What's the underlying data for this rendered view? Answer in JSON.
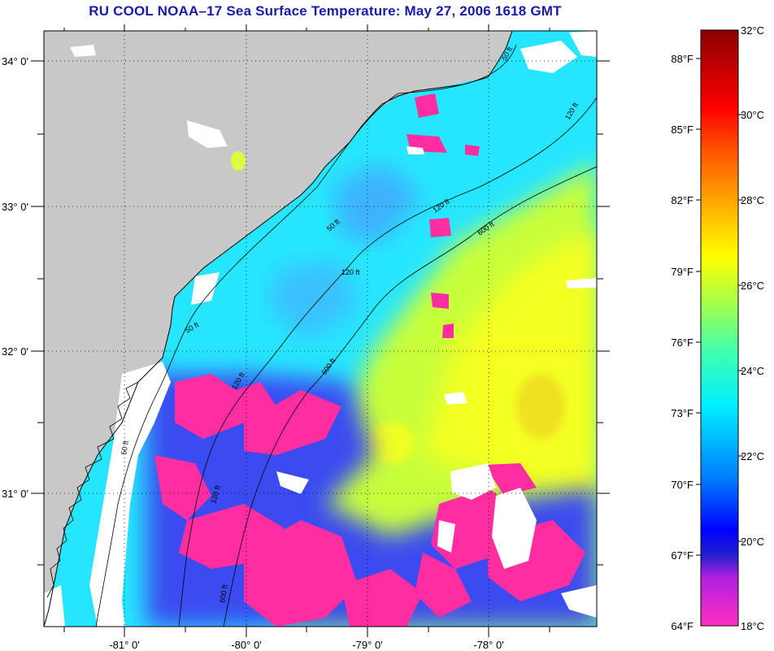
{
  "title": "RU COOL  NOAA–17  Sea Surface Temperature:  May 27, 2006 1618 GMT",
  "map": {
    "lat_labels": [
      "34° 0'",
      "33° 0'",
      "32° 0'",
      "31° 0'"
    ],
    "lon_labels": [
      "-81° 0'",
      "-80° 0'",
      "-79° 0'",
      "-78° 0'"
    ],
    "contour_labels": [
      "50 ft",
      "120 ft",
      "600 ft"
    ],
    "colors": {
      "land": "#c8c8c8",
      "cloud": "#ffffff",
      "cold": "#ff30a0",
      "cool": "#3050ff",
      "mid": "#20e8ff",
      "warm": "#d8ff30",
      "warmest": "#ffe800"
    }
  },
  "colorbar": {
    "fahrenheit": [
      "88°F",
      "85°F",
      "82°F",
      "79°F",
      "76°F",
      "73°F",
      "70°F",
      "67°F",
      "64°F"
    ],
    "celsius": [
      "32°C",
      "30°C",
      "28°C",
      "26°C",
      "24°C",
      "22°C",
      "20°C",
      "18°C"
    ]
  }
}
